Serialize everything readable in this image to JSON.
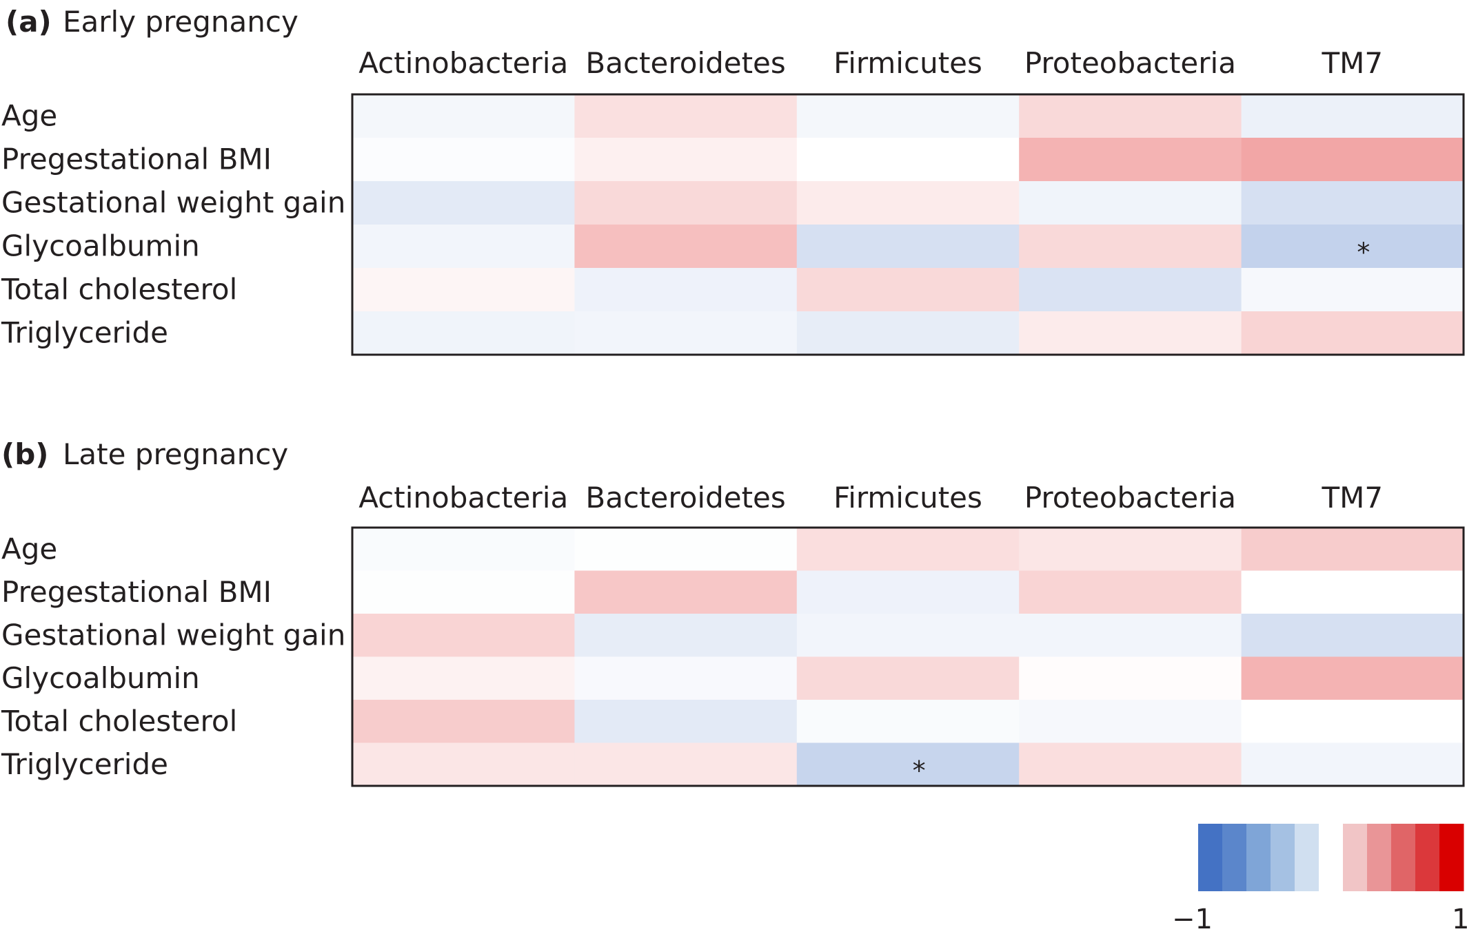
{
  "chart_data": [
    {
      "type": "heatmap",
      "panel_label": "(a)",
      "title": "Early pregnancy",
      "columns": [
        "Actinobacteria",
        "Bacteroidetes",
        "Firmicutes",
        "Proteobacteria",
        "TM7"
      ],
      "rows": [
        "Age",
        "Pregestational BMI",
        "Gestational weight gain",
        "Glycoalbumin",
        "Total cholesterol",
        "Triglyceride"
      ],
      "values": [
        [
          -0.06,
          0.12,
          -0.06,
          0.15,
          -0.1
        ],
        [
          -0.02,
          0.06,
          0.0,
          0.3,
          0.35
        ],
        [
          -0.15,
          0.15,
          0.08,
          -0.08,
          -0.22
        ],
        [
          -0.07,
          0.25,
          -0.22,
          0.15,
          -0.32
        ],
        [
          0.04,
          -0.09,
          0.15,
          -0.2,
          -0.05
        ],
        [
          -0.08,
          -0.07,
          -0.13,
          0.08,
          0.17
        ]
      ],
      "significant": [
        {
          "row": 3,
          "col": 4,
          "mark": "*"
        }
      ],
      "value_range": [
        -1,
        1
      ]
    },
    {
      "type": "heatmap",
      "panel_label": "(b)",
      "title": "Late pregnancy",
      "columns": [
        "Actinobacteria",
        "Bacteroidetes",
        "Firmicutes",
        "Proteobacteria",
        "TM7"
      ],
      "rows": [
        "Age",
        "Pregestational BMI",
        "Gestational weight gain",
        "Glycoalbumin",
        "Total cholesterol",
        "Triglyceride"
      ],
      "values": [
        [
          -0.03,
          -0.01,
          0.13,
          0.1,
          0.2
        ],
        [
          -0.01,
          0.22,
          -0.09,
          0.17,
          0.0
        ],
        [
          0.17,
          -0.13,
          -0.07,
          -0.07,
          -0.22
        ],
        [
          0.05,
          -0.04,
          0.15,
          0.01,
          0.3
        ],
        [
          0.2,
          -0.15,
          -0.03,
          -0.05,
          0.0
        ],
        [
          0.1,
          0.1,
          -0.3,
          0.13,
          -0.07
        ]
      ],
      "significant": [
        {
          "row": 5,
          "col": 2,
          "mark": "*"
        }
      ],
      "value_range": [
        -1,
        1
      ]
    }
  ],
  "colorbar": {
    "min_label": "−1",
    "max_label": "1",
    "colors": [
      "#4472c4",
      "#5b86cb",
      "#7fa5d7",
      "#a5c1e3",
      "#d0dff0",
      "#ffffff",
      "#f1c5c6",
      "#e99597",
      "#e06567",
      "#db383b",
      "#d90000"
    ]
  }
}
